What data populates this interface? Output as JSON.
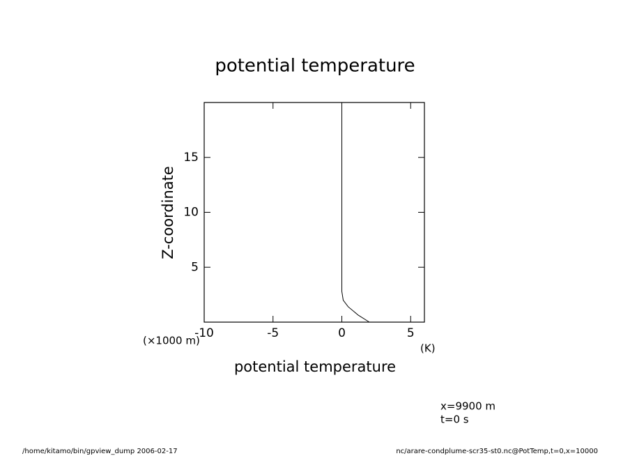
{
  "chart_data": {
    "type": "line",
    "title": "potential temperature",
    "xlabel": "potential temperature",
    "ylabel": "Z-coordinate",
    "x_unit": "(K)",
    "y_unit": "(×1000 m)",
    "x": [
      2,
      1.2,
      0.46,
      0.1,
      0,
      0
    ],
    "values": [
      0,
      0.63,
      1.4,
      2.0,
      2.8,
      20
    ],
    "color": "#000000",
    "xlim": [
      -10,
      6
    ],
    "xticks": [
      -10,
      -5,
      0,
      5
    ],
    "ylim": [
      0,
      20
    ],
    "yticks": [
      5,
      10,
      15
    ],
    "annotations": [
      "x=9900 m",
      "t=0 s"
    ],
    "footer_left": "/home/kitamo/bin/gpview_dump  2006-02-17",
    "footer_right": "nc/arare-condplume-scr35-st0.nc@PotTemp,t=0,x=10000"
  }
}
